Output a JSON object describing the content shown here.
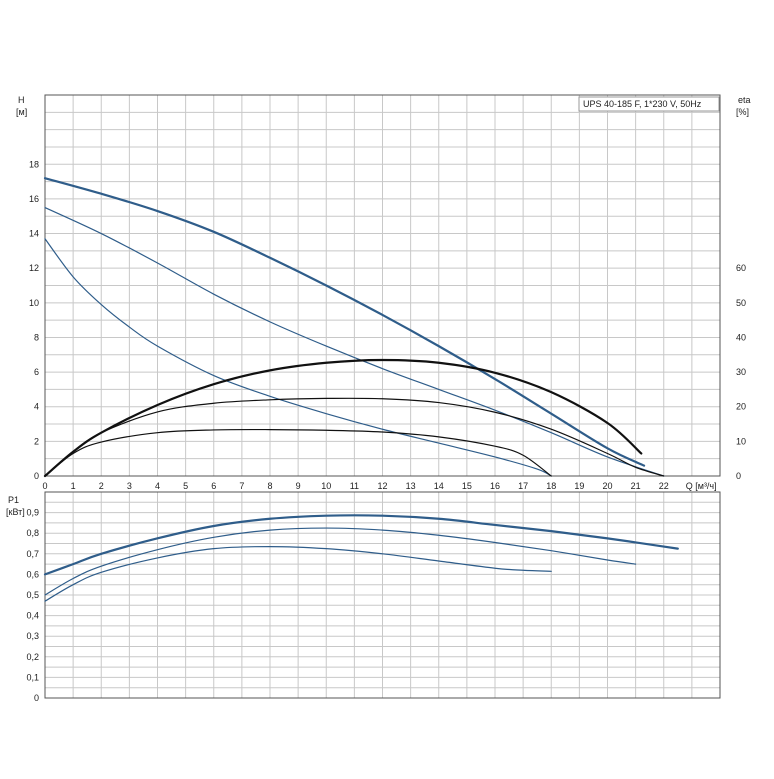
{
  "colors": {
    "grid": "#c8c8c8",
    "frame": "#555555",
    "pump_curve": "#2f5d8a",
    "efficiency_curve": "#111111",
    "background": "#ffffff"
  },
  "chart_data": [
    {
      "type": "line",
      "title": "UPS 40-185 F, 1*230 V, 50Hz",
      "xlabel": "Q [м³/ч]",
      "ylabel_line1": "H",
      "ylabel_line2": "[м]",
      "y2label_line1": "eta",
      "y2label_line2": "[%]",
      "xlim": [
        0,
        24
      ],
      "ylim": [
        0,
        22
      ],
      "y2lim": [
        0,
        110
      ],
      "x_ticks": [
        0,
        1,
        2,
        3,
        4,
        5,
        6,
        7,
        8,
        9,
        10,
        11,
        12,
        13,
        14,
        15,
        16,
        17,
        18,
        19,
        20,
        21,
        22
      ],
      "y_ticks": [
        0,
        2,
        4,
        6,
        8,
        10,
        12,
        14,
        16,
        18
      ],
      "y2_ticks": [
        0,
        10,
        20,
        30,
        40,
        50,
        60
      ],
      "grid": true,
      "series": [
        {
          "role": "head",
          "speed": "3",
          "points": [
            [
              0,
              17.2
            ],
            [
              2,
              16.3
            ],
            [
              4,
              15.3
            ],
            [
              6,
              14.1
            ],
            [
              8,
              12.6
            ],
            [
              10,
              11.0
            ],
            [
              12,
              9.3
            ],
            [
              14,
              7.5
            ],
            [
              16,
              5.6
            ],
            [
              18,
              3.6
            ],
            [
              20,
              1.6
            ],
            [
              21.3,
              0.6
            ]
          ]
        },
        {
          "role": "head",
          "speed": "2",
          "points": [
            [
              0,
              15.5
            ],
            [
              2,
              14.0
            ],
            [
              4,
              12.3
            ],
            [
              6,
              10.5
            ],
            [
              8,
              8.9
            ],
            [
              10,
              7.5
            ],
            [
              12,
              6.2
            ],
            [
              14,
              5.0
            ],
            [
              16,
              3.8
            ],
            [
              18,
              2.5
            ],
            [
              20,
              1.1
            ],
            [
              22,
              0
            ]
          ]
        },
        {
          "role": "head",
          "speed": "1",
          "points": [
            [
              0,
              13.7
            ],
            [
              1,
              11.5
            ],
            [
              2,
              9.9
            ],
            [
              3,
              8.6
            ],
            [
              4,
              7.5
            ],
            [
              6,
              5.8
            ],
            [
              8,
              4.6
            ],
            [
              10,
              3.6
            ],
            [
              12,
              2.7
            ],
            [
              14,
              1.9
            ],
            [
              16,
              1.1
            ],
            [
              17.5,
              0.4
            ],
            [
              18,
              0
            ]
          ]
        },
        {
          "role": "eta",
          "speed": "3",
          "points": [
            [
              0,
              0
            ],
            [
              1,
              7
            ],
            [
              2,
              12.5
            ],
            [
              4,
              20.5
            ],
            [
              6,
              26.5
            ],
            [
              8,
              30.5
            ],
            [
              10,
              32.7
            ],
            [
              12,
              33.5
            ],
            [
              14,
              32.7
            ],
            [
              16,
              29.8
            ],
            [
              18,
              24.2
            ],
            [
              20,
              15.3
            ],
            [
              21.2,
              6.5
            ]
          ]
        },
        {
          "role": "eta",
          "speed": "2",
          "points": [
            [
              0,
              0
            ],
            [
              1,
              7
            ],
            [
              2,
              12.5
            ],
            [
              4,
              18.5
            ],
            [
              6,
              21.0
            ],
            [
              8,
              22.0
            ],
            [
              10,
              22.4
            ],
            [
              12,
              22.3
            ],
            [
              14,
              21.2
            ],
            [
              16,
              18.4
            ],
            [
              18,
              13.5
            ],
            [
              20,
              6.5
            ],
            [
              21,
              2.5
            ],
            [
              22,
              0
            ]
          ]
        },
        {
          "role": "eta",
          "speed": "1",
          "points": [
            [
              0,
              0
            ],
            [
              1,
              6.5
            ],
            [
              2,
              9.8
            ],
            [
              4,
              12.5
            ],
            [
              6,
              13.3
            ],
            [
              8,
              13.4
            ],
            [
              10,
              13.2
            ],
            [
              12,
              12.7
            ],
            [
              14,
              11.3
            ],
            [
              16,
              8.6
            ],
            [
              17,
              6.0
            ],
            [
              18,
              0
            ]
          ]
        }
      ]
    },
    {
      "type": "line",
      "ylabel_line1": "P1",
      "ylabel_line2": "[кВт]",
      "xlim": [
        0,
        24
      ],
      "ylim": [
        0,
        1.0
      ],
      "y_ticks": [
        0,
        0.1,
        0.2,
        0.3,
        0.4,
        0.5,
        0.6,
        0.7,
        0.8,
        0.9
      ],
      "y_tick_labels": [
        "0",
        "0,1",
        "0,2",
        "0,3",
        "0,4",
        "0,5",
        "0,6",
        "0,7",
        "0,8",
        "0,9"
      ],
      "grid": true,
      "series": [
        {
          "role": "power",
          "speed": "3",
          "points": [
            [
              0,
              0.6
            ],
            [
              1,
              0.65
            ],
            [
              2,
              0.7
            ],
            [
              4,
              0.775
            ],
            [
              6,
              0.835
            ],
            [
              8,
              0.87
            ],
            [
              10,
              0.885
            ],
            [
              12,
              0.885
            ],
            [
              14,
              0.87
            ],
            [
              16,
              0.84
            ],
            [
              18,
              0.81
            ],
            [
              20,
              0.775
            ],
            [
              22,
              0.735
            ],
            [
              22.5,
              0.725
            ]
          ]
        },
        {
          "role": "power",
          "speed": "2",
          "points": [
            [
              0,
              0.5
            ],
            [
              1,
              0.58
            ],
            [
              2,
              0.64
            ],
            [
              4,
              0.72
            ],
            [
              6,
              0.78
            ],
            [
              8,
              0.815
            ],
            [
              10,
              0.825
            ],
            [
              12,
              0.815
            ],
            [
              14,
              0.79
            ],
            [
              16,
              0.755
            ],
            [
              18,
              0.715
            ],
            [
              20,
              0.67
            ],
            [
              21,
              0.65
            ]
          ]
        },
        {
          "role": "power",
          "speed": "1",
          "points": [
            [
              0,
              0.47
            ],
            [
              1,
              0.55
            ],
            [
              2,
              0.61
            ],
            [
              4,
              0.68
            ],
            [
              6,
              0.725
            ],
            [
              8,
              0.735
            ],
            [
              10,
              0.725
            ],
            [
              12,
              0.7
            ],
            [
              14,
              0.665
            ],
            [
              16,
              0.63
            ],
            [
              17,
              0.62
            ],
            [
              18,
              0.615
            ]
          ]
        }
      ]
    }
  ]
}
